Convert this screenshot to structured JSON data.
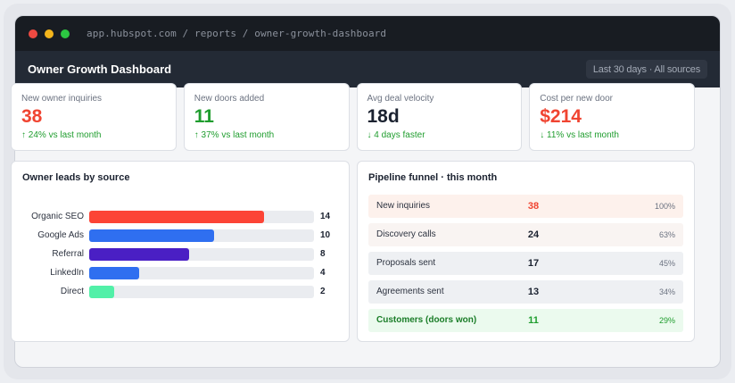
{
  "browser": {
    "url": "app.hubspot.com / reports / owner-growth-dashboard"
  },
  "header": {
    "title": "Owner Growth Dashboard",
    "range_label": "Last 30 days · All sources"
  },
  "kpis": [
    {
      "label": "New owner inquiries",
      "value": "38",
      "delta": "↑ 24% vs last month",
      "value_color": "red"
    },
    {
      "label": "New doors added",
      "value": "11",
      "delta": "↑ 37% vs last month",
      "value_color": "green"
    },
    {
      "label": "Avg deal velocity",
      "value": "18d",
      "delta": "↓ 4 days faster",
      "value_color": "dark"
    },
    {
      "label": "Cost per new door",
      "value": "$214",
      "delta": "↓ 11% vs last month",
      "value_color": "red"
    }
  ],
  "leads_panel": {
    "title": "Owner leads by source"
  },
  "chart_data": {
    "type": "bar",
    "orientation": "horizontal",
    "title": "Owner leads by source",
    "categories": [
      "Organic SEO",
      "Google Ads",
      "Referral",
      "LinkedIn",
      "Direct"
    ],
    "values": [
      14,
      10,
      8,
      4,
      2
    ],
    "colors": [
      "#fc4436",
      "#2f6ff0",
      "#4a1fc4",
      "#2f6ff0",
      "#52f0a8"
    ],
    "xlim": [
      0,
      18
    ]
  },
  "funnel_panel": {
    "title": "Pipeline funnel · this month",
    "rows": [
      {
        "label": "New inquiries",
        "count": "38",
        "pct": "100%",
        "bg": "#fdf1ec",
        "count_color": "#f04431",
        "label_color": "#2d3340",
        "pct_color": "#6b7280"
      },
      {
        "label": "Discovery calls",
        "count": "24",
        "pct": "63%",
        "bg": "#f9f4f2",
        "count_color": "#1b2230",
        "label_color": "#2d3340",
        "pct_color": "#6b7280"
      },
      {
        "label": "Proposals sent",
        "count": "17",
        "pct": "45%",
        "bg": "#eef0f3",
        "count_color": "#1b2230",
        "label_color": "#2d3340",
        "pct_color": "#6b7280"
      },
      {
        "label": "Agreements sent",
        "count": "13",
        "pct": "34%",
        "bg": "#eef0f3",
        "count_color": "#1b2230",
        "label_color": "#2d3340",
        "pct_color": "#6b7280"
      },
      {
        "label": "Customers (doors won)",
        "count": "11",
        "pct": "29%",
        "bg": "#ebfaee",
        "count_color": "#1f9d2e",
        "label_color": "#1a7d28",
        "pct_color": "#1f9d2e"
      }
    ]
  }
}
